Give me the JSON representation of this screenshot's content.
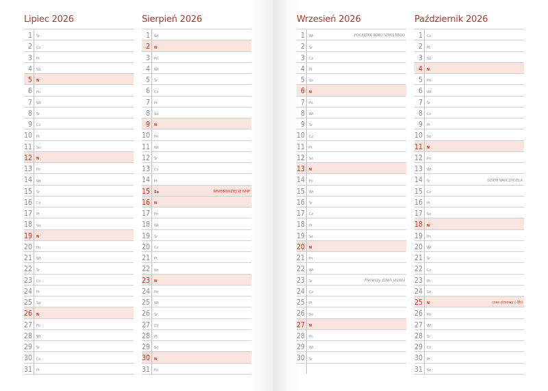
{
  "colors": {
    "accent": "#c0392b",
    "highlight": "#f9e5e0"
  },
  "months": [
    {
      "title": "Lipiec 2026",
      "days": [
        {
          "n": "1",
          "w": "Śr"
        },
        {
          "n": "2",
          "w": "Cz"
        },
        {
          "n": "3",
          "w": "Pt"
        },
        {
          "n": "4",
          "w": "So"
        },
        {
          "n": "5",
          "w": "N"
        },
        {
          "n": "6",
          "w": "Pn"
        },
        {
          "n": "7",
          "w": "Wt"
        },
        {
          "n": "8",
          "w": "Śr"
        },
        {
          "n": "9",
          "w": "Cz"
        },
        {
          "n": "10",
          "w": "Pt"
        },
        {
          "n": "11",
          "w": "So"
        },
        {
          "n": "12",
          "w": "N"
        },
        {
          "n": "13",
          "w": "Pn"
        },
        {
          "n": "14",
          "w": "Wt"
        },
        {
          "n": "15",
          "w": "Śr"
        },
        {
          "n": "16",
          "w": "Cz"
        },
        {
          "n": "17",
          "w": "Pt"
        },
        {
          "n": "18",
          "w": "So"
        },
        {
          "n": "19",
          "w": "N"
        },
        {
          "n": "20",
          "w": "Pn"
        },
        {
          "n": "21",
          "w": "Wt"
        },
        {
          "n": "22",
          "w": "Śr"
        },
        {
          "n": "23",
          "w": "Cz"
        },
        {
          "n": "24",
          "w": "Pt"
        },
        {
          "n": "25",
          "w": "So"
        },
        {
          "n": "26",
          "w": "N"
        },
        {
          "n": "27",
          "w": "Pn"
        },
        {
          "n": "28",
          "w": "Wt"
        },
        {
          "n": "29",
          "w": "Śr"
        },
        {
          "n": "30",
          "w": "Cz"
        },
        {
          "n": "31",
          "w": "Pt"
        }
      ]
    },
    {
      "title": "Sierpień 2026",
      "days": [
        {
          "n": "1",
          "w": "So"
        },
        {
          "n": "2",
          "w": "N"
        },
        {
          "n": "3",
          "w": "Pn"
        },
        {
          "n": "4",
          "w": "Wt"
        },
        {
          "n": "5",
          "w": "Śr"
        },
        {
          "n": "6",
          "w": "Cz"
        },
        {
          "n": "7",
          "w": "Pt"
        },
        {
          "n": "8",
          "w": "So"
        },
        {
          "n": "9",
          "w": "N"
        },
        {
          "n": "10",
          "w": "Pn"
        },
        {
          "n": "11",
          "w": "Wt"
        },
        {
          "n": "12",
          "w": "Śr"
        },
        {
          "n": "13",
          "w": "Cz"
        },
        {
          "n": "14",
          "w": "Pt"
        },
        {
          "n": "15",
          "w": "So",
          "holiday": true,
          "note": "WNIEBOWZIĘCIE NMP",
          "note_style": "red"
        },
        {
          "n": "16",
          "w": "N"
        },
        {
          "n": "17",
          "w": "Pn"
        },
        {
          "n": "18",
          "w": "Wt"
        },
        {
          "n": "19",
          "w": "Śr"
        },
        {
          "n": "20",
          "w": "Cz"
        },
        {
          "n": "21",
          "w": "Pt"
        },
        {
          "n": "22",
          "w": "So"
        },
        {
          "n": "23",
          "w": "N"
        },
        {
          "n": "24",
          "w": "Pn"
        },
        {
          "n": "25",
          "w": "Wt"
        },
        {
          "n": "26",
          "w": "Śr"
        },
        {
          "n": "27",
          "w": "Cz"
        },
        {
          "n": "28",
          "w": "Pt"
        },
        {
          "n": "29",
          "w": "So"
        },
        {
          "n": "30",
          "w": "N"
        },
        {
          "n": "31",
          "w": "Pn"
        }
      ]
    },
    {
      "title": "Wrzesień 2026",
      "days": [
        {
          "n": "1",
          "w": "Wt",
          "note": "POCZĄTEK ROKU SZKOLNEGO",
          "note_style": "grey"
        },
        {
          "n": "2",
          "w": "Śr"
        },
        {
          "n": "3",
          "w": "Cz"
        },
        {
          "n": "4",
          "w": "Pt"
        },
        {
          "n": "5",
          "w": "So"
        },
        {
          "n": "6",
          "w": "N"
        },
        {
          "n": "7",
          "w": "Pn"
        },
        {
          "n": "8",
          "w": "Wt"
        },
        {
          "n": "9",
          "w": "Śr"
        },
        {
          "n": "10",
          "w": "Cz"
        },
        {
          "n": "11",
          "w": "Pt"
        },
        {
          "n": "12",
          "w": "So"
        },
        {
          "n": "13",
          "w": "N"
        },
        {
          "n": "14",
          "w": "Pn"
        },
        {
          "n": "15",
          "w": "Wt"
        },
        {
          "n": "16",
          "w": "Śr"
        },
        {
          "n": "17",
          "w": "Cz"
        },
        {
          "n": "18",
          "w": "Pt"
        },
        {
          "n": "19",
          "w": "So"
        },
        {
          "n": "20",
          "w": "N"
        },
        {
          "n": "21",
          "w": "Pn"
        },
        {
          "n": "22",
          "w": "Wt"
        },
        {
          "n": "23",
          "w": "Śr",
          "note": "Pierwszy dzień jesieni",
          "note_style": "italic"
        },
        {
          "n": "24",
          "w": "Cz"
        },
        {
          "n": "25",
          "w": "Pt"
        },
        {
          "n": "26",
          "w": "So"
        },
        {
          "n": "27",
          "w": "N"
        },
        {
          "n": "28",
          "w": "Pn"
        },
        {
          "n": "29",
          "w": "Wt"
        },
        {
          "n": "30",
          "w": "Śr"
        }
      ]
    },
    {
      "title": "Październik 2026",
      "days": [
        {
          "n": "1",
          "w": "Cz"
        },
        {
          "n": "2",
          "w": "Pt"
        },
        {
          "n": "3",
          "w": "So"
        },
        {
          "n": "4",
          "w": "N"
        },
        {
          "n": "5",
          "w": "Pn"
        },
        {
          "n": "6",
          "w": "Wt"
        },
        {
          "n": "7",
          "w": "Śr"
        },
        {
          "n": "8",
          "w": "Cz"
        },
        {
          "n": "9",
          "w": "Pt"
        },
        {
          "n": "10",
          "w": "So"
        },
        {
          "n": "11",
          "w": "N"
        },
        {
          "n": "12",
          "w": "Pn"
        },
        {
          "n": "13",
          "w": "Wt"
        },
        {
          "n": "14",
          "w": "Śr",
          "note": "DZIEŃ NAUCZYCIELA",
          "note_style": "grey"
        },
        {
          "n": "15",
          "w": "Cz"
        },
        {
          "n": "16",
          "w": "Pt"
        },
        {
          "n": "17",
          "w": "So"
        },
        {
          "n": "18",
          "w": "N"
        },
        {
          "n": "19",
          "w": "Pn"
        },
        {
          "n": "20",
          "w": "Wt"
        },
        {
          "n": "21",
          "w": "Śr"
        },
        {
          "n": "22",
          "w": "Cz"
        },
        {
          "n": "23",
          "w": "Pt"
        },
        {
          "n": "24",
          "w": "So"
        },
        {
          "n": "25",
          "w": "N",
          "note": "czas zimowy (-1h)",
          "note_style": "red"
        },
        {
          "n": "26",
          "w": "Pn"
        },
        {
          "n": "27",
          "w": "Wt"
        },
        {
          "n": "28",
          "w": "Śr"
        },
        {
          "n": "29",
          "w": "Cz"
        },
        {
          "n": "30",
          "w": "Pt"
        },
        {
          "n": "31",
          "w": "So"
        }
      ]
    }
  ]
}
